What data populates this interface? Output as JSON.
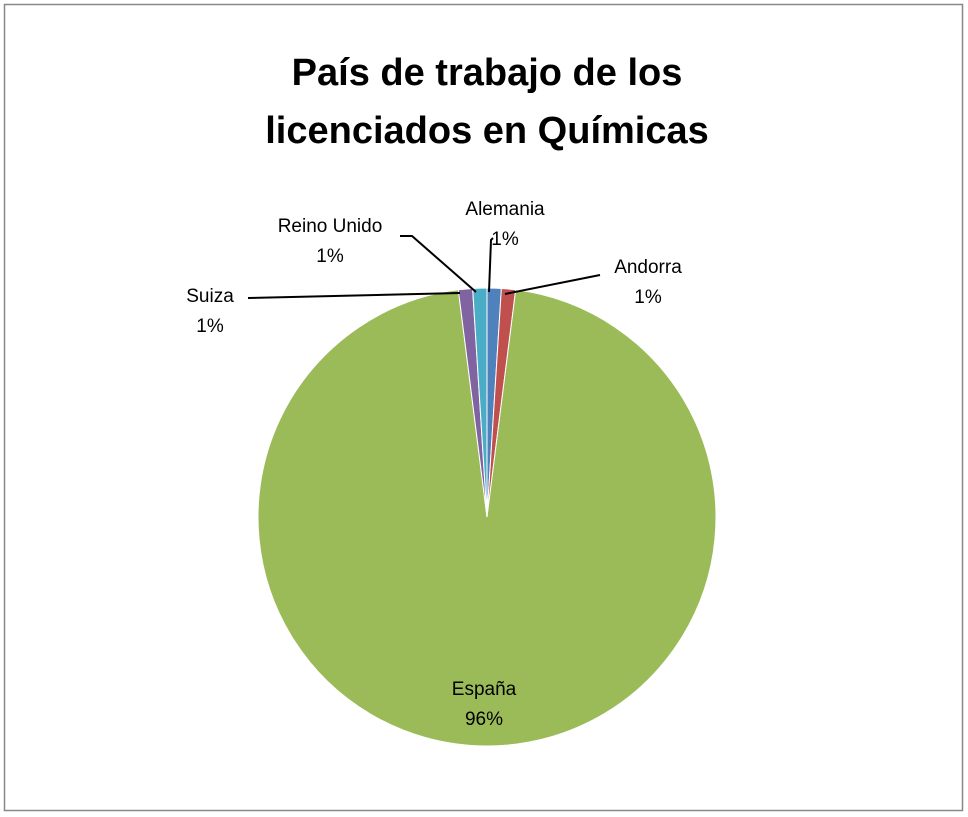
{
  "chart_data": {
    "type": "pie",
    "title": [
      "País de trabajo de los",
      "licenciados en Químicas"
    ],
    "categories": [
      "Alemania",
      "Andorra",
      "España",
      "Suiza",
      "Reino Unido"
    ],
    "values": [
      1,
      1,
      96,
      1,
      1
    ],
    "value_labels": [
      "1%",
      "1%",
      "96%",
      "1%",
      "1%"
    ],
    "colors": [
      "#4f81bd",
      "#c0504d",
      "#9bbb59",
      "#8064a2",
      "#4bacc6"
    ]
  }
}
